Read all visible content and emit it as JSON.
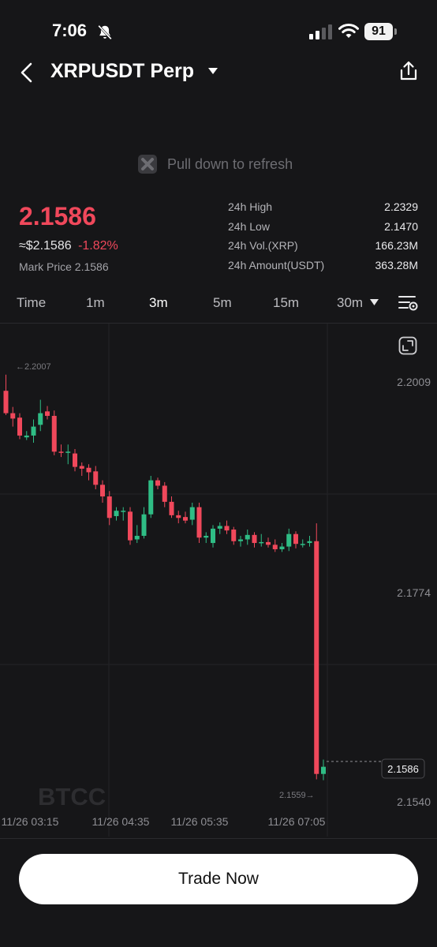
{
  "status_bar": {
    "time": "7:06",
    "battery": "91"
  },
  "header": {
    "title": "XRPUSDT Perp"
  },
  "refresh_hint": "Pull down to refresh",
  "ticker": {
    "price": "2.1586",
    "approx_usd": "≈$2.1586",
    "change_pct": "-1.82%",
    "mark_price": "Mark Price 2.1586"
  },
  "stats": [
    {
      "label": "24h High",
      "value": "2.2329"
    },
    {
      "label": "24h Low",
      "value": "2.1470"
    },
    {
      "label": "24h Vol.(XRP)",
      "value": "166.23M"
    },
    {
      "label": "24h Amount(USDT)",
      "value": "363.28M"
    }
  ],
  "intervals": [
    "Time",
    "1m",
    "3m",
    "5m",
    "15m",
    "30m"
  ],
  "active_interval": "3m",
  "colors": {
    "up": "#2fbd85",
    "down": "#f0485b",
    "accent_red": "#f0485b"
  },
  "chart_labels": {
    "y_ticks": [
      "2.2009",
      "2.1774",
      "2.1540"
    ],
    "x_ticks": [
      "11/26 03:15",
      "11/26 04:35",
      "11/26 05:35",
      "11/26 07:05"
    ],
    "high_marker": "←2.2007",
    "low_marker": "2.1559→",
    "last_price": "2.1586",
    "watermark": "BTCC"
  },
  "chart_data": {
    "type": "candlestick",
    "symbol": "XRPUSDT Perp",
    "interval": "3m",
    "y_ticks": [
      2.2009,
      2.1774,
      2.154
    ],
    "x_ticks": [
      "11/26 03:15",
      "11/26 04:35",
      "11/26 05:35",
      "11/26 07:05"
    ],
    "ylim": [
      2.1526,
      2.2034
    ],
    "last_price": 2.1586,
    "high_marker": 2.2007,
    "low_marker": 2.1559,
    "candles": [
      [
        2.2,
        2.1975,
        2.2018,
        2.1973
      ],
      [
        2.1975,
        2.1969,
        2.1982,
        2.196
      ],
      [
        2.197,
        2.195,
        2.1975,
        2.1946
      ],
      [
        2.1948,
        2.195,
        2.1955,
        2.1945
      ],
      [
        2.195,
        2.196,
        2.1968,
        2.1942
      ],
      [
        2.1962,
        2.1975,
        2.199,
        2.1955
      ],
      [
        2.1977,
        2.1972,
        2.1983,
        2.1968
      ],
      [
        2.1972,
        2.1932,
        2.1978,
        2.1928
      ],
      [
        2.1932,
        2.1931,
        2.194,
        2.1926
      ],
      [
        2.1931,
        2.1932,
        2.194,
        2.1918
      ],
      [
        2.193,
        2.1915,
        2.1935,
        2.191
      ],
      [
        2.1916,
        2.1913,
        2.192,
        2.1905
      ],
      [
        2.1914,
        2.1909,
        2.1918,
        2.19
      ],
      [
        2.191,
        2.1895,
        2.1916,
        2.189
      ],
      [
        2.1895,
        2.1882,
        2.19,
        2.1875
      ],
      [
        2.1882,
        2.1858,
        2.1888,
        2.185
      ],
      [
        2.186,
        2.1866,
        2.187,
        2.1855
      ],
      [
        2.1866,
        2.1866,
        2.187,
        2.1855
      ],
      [
        2.1865,
        2.1833,
        2.187,
        2.1828
      ],
      [
        2.1834,
        2.1838,
        2.185,
        2.183
      ],
      [
        2.1838,
        2.1862,
        2.187,
        2.1835
      ],
      [
        2.1862,
        2.19,
        2.1905,
        2.1858
      ],
      [
        2.19,
        2.1894,
        2.1903,
        2.189
      ],
      [
        2.1894,
        2.1876,
        2.1898,
        2.187
      ],
      [
        2.1876,
        2.1861,
        2.1882,
        2.1858
      ],
      [
        2.1861,
        2.1858,
        2.1866,
        2.1852
      ],
      [
        2.1859,
        2.1855,
        2.1865,
        2.1852
      ],
      [
        2.1856,
        2.187,
        2.1875,
        2.185
      ],
      [
        2.187,
        2.1836,
        2.1875,
        2.183
      ],
      [
        2.1836,
        2.1838,
        2.1842,
        2.183
      ],
      [
        2.183,
        2.1846,
        2.185,
        2.1825
      ],
      [
        2.1846,
        2.1849,
        2.1853,
        2.184
      ],
      [
        2.1849,
        2.1844,
        2.1855,
        2.184
      ],
      [
        2.1845,
        2.1832,
        2.1848,
        2.1828
      ],
      [
        2.1832,
        2.1834,
        2.1838,
        2.1826
      ],
      [
        2.1834,
        2.1839,
        2.1845,
        2.1828
      ],
      [
        2.1839,
        2.183,
        2.1842,
        2.1825
      ],
      [
        2.183,
        2.1831,
        2.184,
        2.1826
      ],
      [
        2.1831,
        2.1828,
        2.1836,
        2.1825
      ],
      [
        2.1828,
        2.1823,
        2.1834,
        2.182
      ],
      [
        2.1823,
        2.1826,
        2.183,
        2.182
      ],
      [
        2.1826,
        2.184,
        2.1846,
        2.1821
      ],
      [
        2.184,
        2.1829,
        2.1843,
        2.1824
      ],
      [
        2.1829,
        2.1829,
        2.1834,
        2.1825
      ],
      [
        2.183,
        2.1832,
        2.1838,
        2.1826
      ],
      [
        2.1832,
        2.1572,
        2.1852,
        2.1566
      ],
      [
        2.1572,
        2.158,
        2.1588,
        2.1565
      ]
    ]
  }
}
